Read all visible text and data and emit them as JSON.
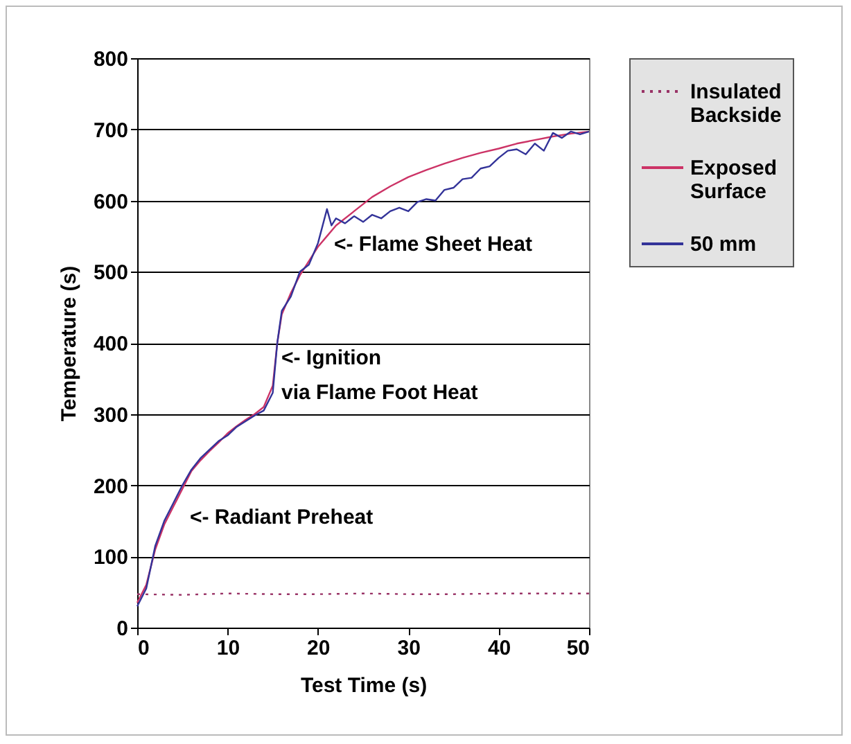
{
  "chart_data": {
    "type": "line",
    "xlabel": "Test Time (s)",
    "ylabel": "Temperature (s)",
    "xlim": [
      0,
      50
    ],
    "xticks": [
      0,
      10,
      20,
      30,
      40,
      50
    ],
    "ylim": [
      0,
      800
    ],
    "yticks": [
      0,
      100,
      200,
      300,
      400,
      500,
      600,
      700,
      800
    ],
    "grid": "y",
    "legend": "right",
    "line_style": "solid",
    "marker": "none",
    "series": [
      {
        "name": "Insulated Backside",
        "color": "#993366",
        "line_style": "dotted",
        "x": [
          0,
          5,
          10,
          15,
          20,
          25,
          30,
          35,
          40,
          45,
          50
        ],
        "values": [
          47,
          46,
          48,
          47,
          47,
          48,
          47,
          47,
          48,
          48,
          48
        ]
      },
      {
        "name": "Exposed Surface",
        "color": "#cc3366",
        "x": [
          0,
          1,
          2,
          3,
          4,
          5,
          6,
          7,
          8,
          9,
          10,
          11,
          12,
          13,
          14,
          15,
          15.5,
          16,
          17,
          18,
          19,
          20,
          21,
          22,
          24,
          26,
          28,
          30,
          32,
          34,
          36,
          38,
          40,
          42,
          44,
          46,
          48,
          50
        ],
        "values": [
          35,
          60,
          110,
          145,
          170,
          195,
          220,
          235,
          248,
          260,
          273,
          283,
          292,
          300,
          310,
          340,
          400,
          440,
          470,
          495,
          515,
          535,
          550,
          565,
          585,
          605,
          620,
          633,
          643,
          652,
          660,
          667,
          673,
          680,
          685,
          690,
          694,
          697
        ]
      },
      {
        "name": "50 mm",
        "color": "#333399",
        "x": [
          0,
          1,
          2,
          3,
          4,
          5,
          6,
          7,
          8,
          9,
          10,
          11,
          12,
          13,
          14,
          15,
          15.5,
          16,
          17,
          18,
          19,
          20,
          21,
          21.5,
          22,
          23,
          24,
          25,
          26,
          27,
          28,
          29,
          30,
          31,
          32,
          33,
          34,
          35,
          36,
          37,
          38,
          39,
          40,
          41,
          42,
          43,
          44,
          45,
          46,
          47,
          48,
          49,
          50
        ],
        "values": [
          30,
          55,
          115,
          150,
          175,
          200,
          222,
          238,
          250,
          262,
          270,
          282,
          290,
          298,
          305,
          330,
          400,
          445,
          465,
          500,
          510,
          540,
          588,
          565,
          575,
          568,
          578,
          570,
          580,
          575,
          585,
          590,
          585,
          598,
          602,
          600,
          615,
          618,
          630,
          632,
          645,
          648,
          660,
          670,
          672,
          665,
          680,
          670,
          695,
          688,
          697,
          693,
          697
        ]
      }
    ],
    "annotations": [
      "<- Flame Sheet Heat",
      "<-  Ignition\n via Flame Foot Heat",
      "<- Radiant Preheat"
    ]
  }
}
